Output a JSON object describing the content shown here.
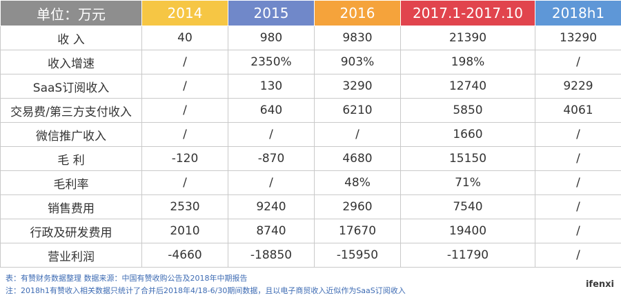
{
  "table": {
    "header": [
      "单位：万元",
      "2014",
      "2015",
      "2016",
      "2017.1-2017.10",
      "2018h1"
    ],
    "rows": [
      [
        "收 入",
        "40",
        "980",
        "9830",
        "21390",
        "13290"
      ],
      [
        "收入增速",
        "/",
        "2350%",
        "903%",
        "198%",
        "/"
      ],
      [
        "SaaS订阅收入",
        "/",
        "130",
        "3290",
        "12740",
        "9229"
      ],
      [
        "交易费/第三方支付收入",
        "/",
        "640",
        "6210",
        "5850",
        "4061"
      ],
      [
        "微信推广收入",
        "/",
        "/",
        "/",
        "1660",
        "/"
      ],
      [
        "毛 利",
        "-120",
        "-870",
        "4680",
        "15150",
        "/"
      ],
      [
        "毛利率",
        "/",
        "/",
        "48%",
        "71%",
        "/"
      ],
      [
        "销售费用",
        "2530",
        "9240",
        "2960",
        "7540",
        "/"
      ],
      [
        "行政及研发费用",
        "2010",
        "8740",
        "17670",
        "19400",
        "/"
      ],
      [
        "营业利润",
        "-4660",
        "-18850",
        "-15950",
        "-11790",
        "/"
      ]
    ]
  },
  "notes": [
    "表：有赞财务数据整理    数据来源：中国有赞收购公告及2018年中期报告",
    "注：2018h1有赞收入相关数据只统计了合并后2018年4/18-6/30期间数据，且以电子商贸收入近似作为SaaS订阅收入"
  ],
  "logo": "ifenxi"
}
